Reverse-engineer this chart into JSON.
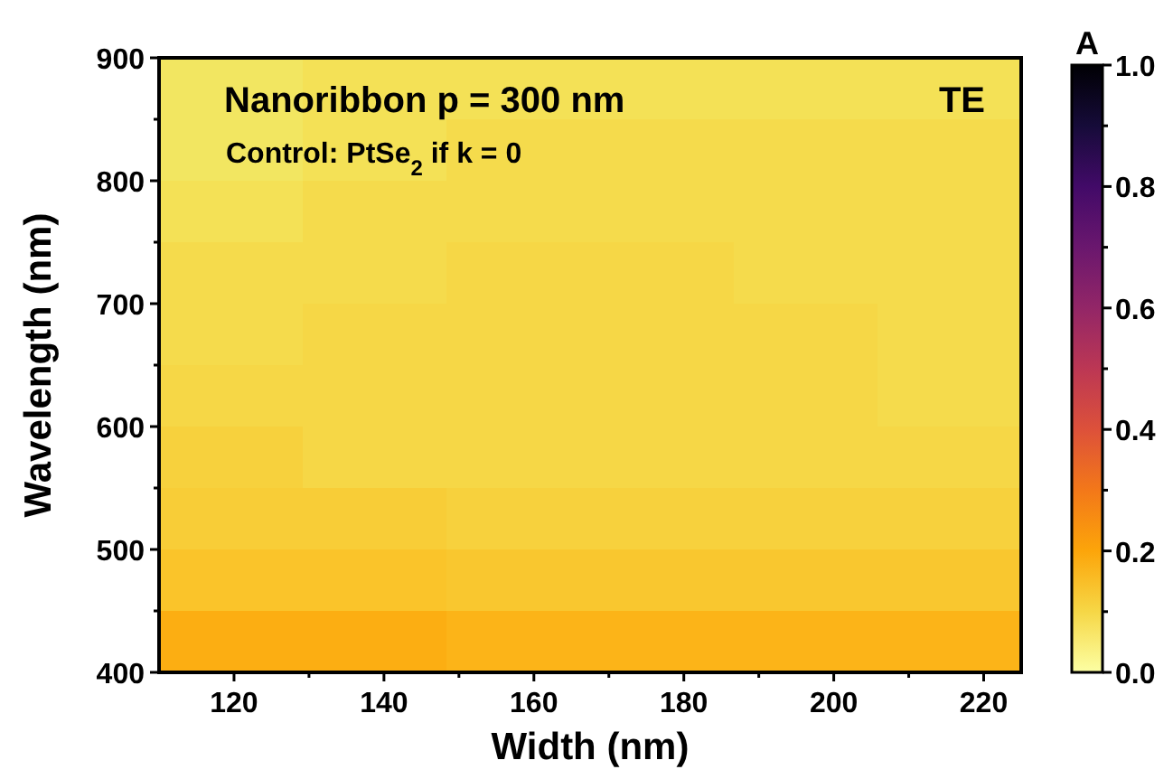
{
  "chart_data": {
    "type": "heatmap",
    "title": "Nanoribbon p = 300 nm",
    "subtitle": "Control: PtSe$_{2}$ if k = 0",
    "annotations": [
      "TE"
    ],
    "xlabel": "Width (nm)",
    "ylabel": "Wavelength (nm)",
    "clabel": "A",
    "xlim": [
      110,
      225
    ],
    "xticks": [
      120,
      {
        "value": 130,
        "label": null
      },
      140,
      {
        "value": 150,
        "label": null
      },
      160,
      {
        "value": 170,
        "label": null
      },
      180,
      {
        "value": 190,
        "label": null
      },
      200,
      {
        "value": 210,
        "label": null
      },
      220
    ],
    "ylim": [
      400,
      900
    ],
    "yticks": [
      400,
      {
        "value": 450,
        "label": null
      },
      500,
      {
        "value": 550,
        "label": null
      },
      600,
      {
        "value": 650,
        "label": null
      },
      700,
      {
        "value": 750,
        "label": null
      },
      800,
      {
        "value": 850,
        "label": null
      },
      900
    ],
    "clim": [
      0,
      1
    ],
    "cticks": [
      {
        "value": 0,
        "label": "0.0"
      },
      {
        "value": 0.1,
        "label": null
      },
      {
        "value": 0.2,
        "label": "0.2"
      },
      {
        "value": 0.3,
        "label": null
      },
      {
        "value": 0.4,
        "label": "0.4"
      },
      {
        "value": 0.5,
        "label": null
      },
      {
        "value": 0.6,
        "label": "0.6"
      },
      {
        "value": 0.7,
        "label": null
      },
      {
        "value": 0.8,
        "label": "0.8"
      },
      {
        "value": 0.9,
        "label": null
      },
      {
        "value": 1,
        "label": "1.0"
      }
    ],
    "cells": [
      [
        0.07,
        0.08,
        0.08,
        0.08,
        0.08,
        0.08
      ],
      [
        0.07,
        0.08,
        0.09,
        0.09,
        0.09,
        0.09
      ],
      [
        0.08,
        0.09,
        0.09,
        0.09,
        0.09,
        0.09
      ],
      [
        0.09,
        0.09,
        0.1,
        0.1,
        0.09,
        0.09
      ],
      [
        0.09,
        0.1,
        0.1,
        0.1,
        0.1,
        0.09
      ],
      [
        0.1,
        0.1,
        0.1,
        0.1,
        0.1,
        0.09
      ],
      [
        0.11,
        0.1,
        0.1,
        0.1,
        0.1,
        0.1
      ],
      [
        0.12,
        0.12,
        0.11,
        0.11,
        0.11,
        0.11
      ],
      [
        0.14,
        0.14,
        0.13,
        0.13,
        0.13,
        0.13
      ],
      [
        0.18,
        0.18,
        0.17,
        0.17,
        0.17,
        0.17
      ]
    ]
  }
}
